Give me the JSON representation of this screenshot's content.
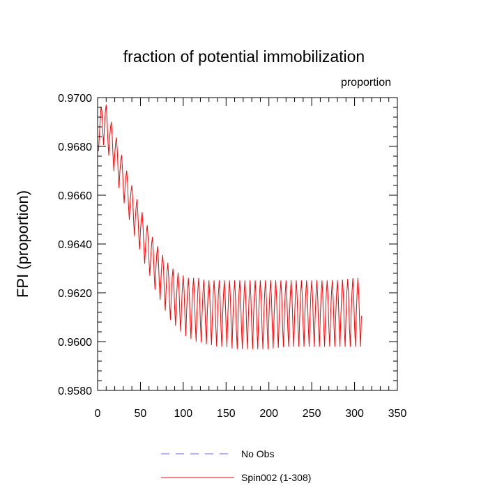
{
  "chart_data": {
    "type": "line",
    "title": "fraction of potential immobilization",
    "units_label": "proportion",
    "xlabel": "",
    "ylabel": "FPI  (proportion)",
    "xlim": [
      0,
      350
    ],
    "ylim": [
      0.958,
      0.97
    ],
    "x_ticks": [
      0,
      50,
      100,
      150,
      200,
      250,
      300,
      350
    ],
    "x_tick_labels": [
      "0",
      "50",
      "100",
      "150",
      "200",
      "250",
      "300",
      "350"
    ],
    "y_ticks": [
      0.958,
      0.96,
      0.962,
      0.964,
      0.966,
      0.968,
      0.97
    ],
    "y_tick_labels": [
      "0.9580",
      "0.9600",
      "0.9620",
      "0.9640",
      "0.9660",
      "0.9680",
      "0.9700"
    ],
    "grid": false,
    "legend_position": "bottom",
    "series": [
      {
        "name": "No Obs",
        "color": "#6b6bff",
        "style": "dashed",
        "x": [],
        "y": []
      },
      {
        "name": "Spin002 (1-308)",
        "color": "#ff0000",
        "style": "solid",
        "cycle_period": 6,
        "cycle_shape": [
          0.0,
          0.45,
          0.8,
          1.0,
          0.75,
          0.3
        ],
        "envelope_x": [
          1,
          5,
          10,
          15,
          20,
          25,
          30,
          35,
          40,
          45,
          50,
          55,
          60,
          65,
          70,
          75,
          80,
          85,
          90,
          95,
          100,
          105,
          110,
          115,
          120,
          125,
          130,
          140,
          150,
          160,
          170,
          180,
          200,
          220,
          240,
          260,
          280,
          300,
          308
        ],
        "envelope_min": [
          0.9678,
          0.9681,
          0.968,
          0.9674,
          0.9669,
          0.9663,
          0.9658,
          0.9652,
          0.9647,
          0.9641,
          0.9637,
          0.9632,
          0.9628,
          0.9623,
          0.9619,
          0.9616,
          0.9612,
          0.9609,
          0.9607,
          0.9605,
          0.9603,
          0.9602,
          0.9601,
          0.96,
          0.96,
          0.9599,
          0.9599,
          0.9598,
          0.9598,
          0.9597,
          0.9597,
          0.9597,
          0.9597,
          0.9598,
          0.9598,
          0.9598,
          0.9598,
          0.9598,
          0.9598
        ],
        "envelope_max": [
          0.9688,
          0.9699,
          0.9697,
          0.9691,
          0.9686,
          0.968,
          0.9674,
          0.9669,
          0.9664,
          0.9659,
          0.9655,
          0.965,
          0.9646,
          0.9642,
          0.9639,
          0.9636,
          0.9633,
          0.9631,
          0.9629,
          0.9628,
          0.9627,
          0.9626,
          0.9626,
          0.9626,
          0.9626,
          0.9625,
          0.9625,
          0.9625,
          0.9625,
          0.9625,
          0.9625,
          0.9625,
          0.9625,
          0.9625,
          0.9625,
          0.9625,
          0.9625,
          0.9626,
          0.9626
        ]
      }
    ]
  }
}
